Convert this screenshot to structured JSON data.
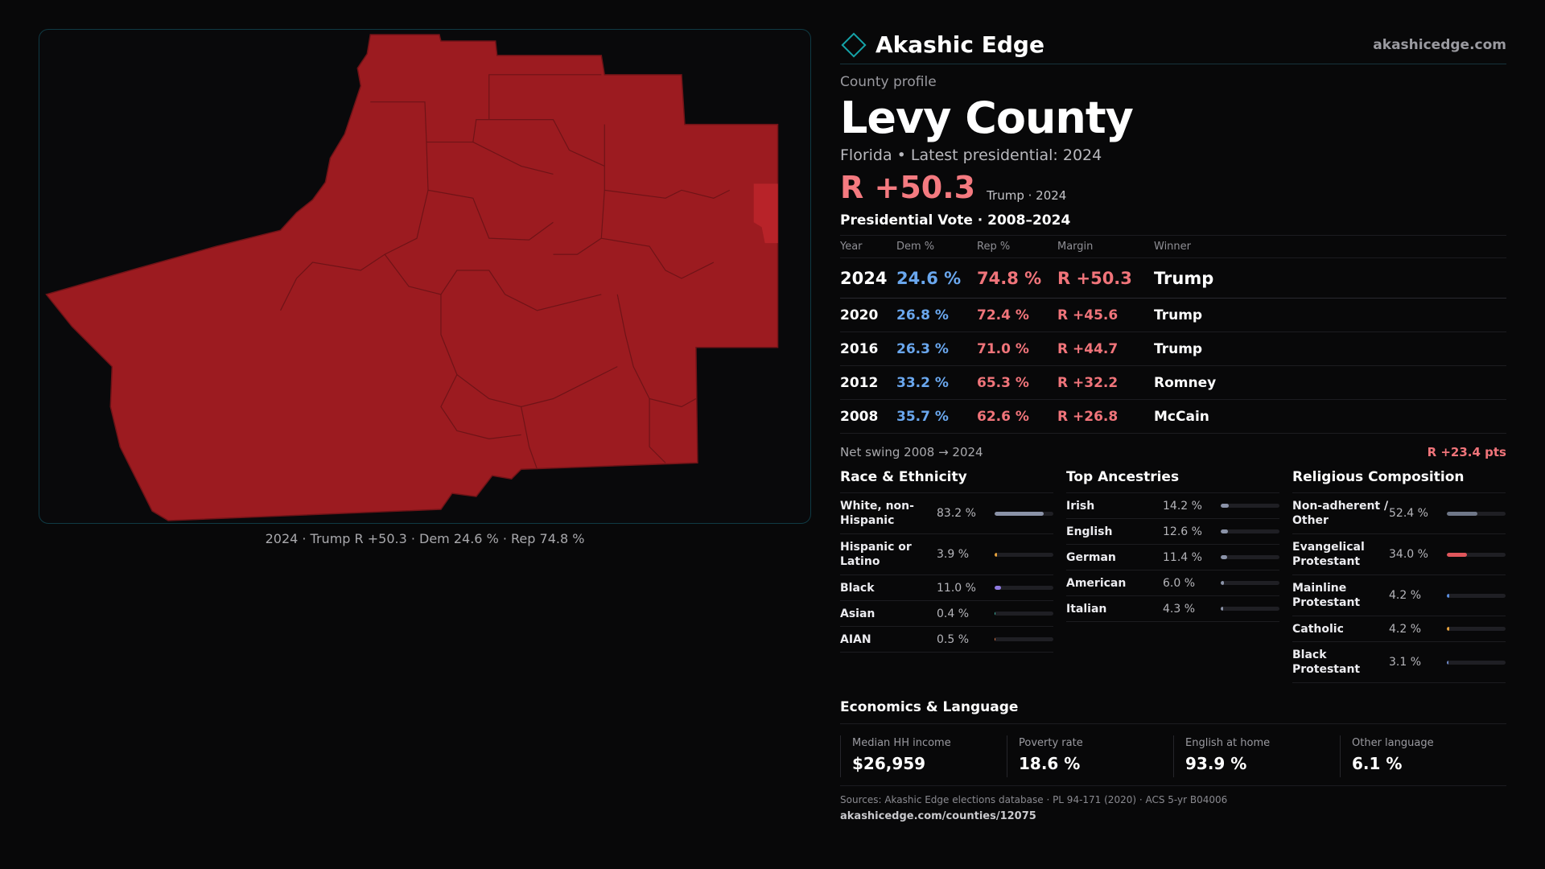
{
  "map": {
    "caption": "2024 · Trump R +50.3 · Dem 24.6 % · Rep 74.8 %",
    "fill_color": "#9c1b20",
    "highlight_color": "#b82329",
    "border_color": "#6f1317"
  },
  "brand": {
    "name": "Akashic Edge",
    "url": "akashicedge.com",
    "accent": "#15a3a8"
  },
  "profile": {
    "eyebrow": "County profile",
    "county": "Levy County",
    "subtitle": "Florida • Latest presidential: 2024",
    "margin": "R +50.3",
    "margin_note": "Trump · 2024"
  },
  "presidential": {
    "title": "Presidential Vote · 2008–2024",
    "headers": {
      "year": "Year",
      "dem": "Dem %",
      "rep": "Rep %",
      "margin": "Margin",
      "winner": "Winner"
    },
    "rows": [
      {
        "year": "2024",
        "dem": "24.6 %",
        "rep": "74.8 %",
        "margin": "R +50.3",
        "winner": "Trump"
      },
      {
        "year": "2020",
        "dem": "26.8 %",
        "rep": "72.4 %",
        "margin": "R +45.6",
        "winner": "Trump"
      },
      {
        "year": "2016",
        "dem": "26.3 %",
        "rep": "71.0 %",
        "margin": "R +44.7",
        "winner": "Trump"
      },
      {
        "year": "2012",
        "dem": "33.2 %",
        "rep": "65.3 %",
        "margin": "R +32.2",
        "winner": "Romney"
      },
      {
        "year": "2008",
        "dem": "35.7 %",
        "rep": "62.6 %",
        "margin": "R +26.8",
        "winner": "McCain"
      }
    ],
    "swing_label": "Net swing 2008 → 2024",
    "swing_value": "R +23.4 pts"
  },
  "race": {
    "title": "Race & Ethnicity",
    "items": [
      {
        "label": "White, non-Hispanic",
        "value": "83.2 %",
        "pct": 83.2,
        "color": "#8b93a8"
      },
      {
        "label": "Hispanic or Latino",
        "value": "3.9 %",
        "pct": 3.9,
        "color": "#e8a33c"
      },
      {
        "label": "Black",
        "value": "11.0 %",
        "pct": 11.0,
        "color": "#8f7ae0"
      },
      {
        "label": "Asian",
        "value": "0.4 %",
        "pct": 0.4,
        "color": "#3fb5a3"
      },
      {
        "label": "AIAN",
        "value": "0.5 %",
        "pct": 0.5,
        "color": "#e07a4a"
      }
    ]
  },
  "ancestry": {
    "title": "Top Ancestries",
    "items": [
      {
        "label": "Irish",
        "value": "14.2 %",
        "pct": 14.2,
        "color": "#8b93a8"
      },
      {
        "label": "English",
        "value": "12.6 %",
        "pct": 12.6,
        "color": "#8b93a8"
      },
      {
        "label": "German",
        "value": "11.4 %",
        "pct": 11.4,
        "color": "#8b93a8"
      },
      {
        "label": "American",
        "value": "6.0 %",
        "pct": 6.0,
        "color": "#8b93a8"
      },
      {
        "label": "Italian",
        "value": "4.3 %",
        "pct": 4.3,
        "color": "#8b93a8"
      }
    ]
  },
  "religion": {
    "title": "Religious Composition",
    "items": [
      {
        "label": "Non-adherent / Other",
        "value": "52.4 %",
        "pct": 52.4,
        "color": "#6f7788"
      },
      {
        "label": "Evangelical Protestant",
        "value": "34.0 %",
        "pct": 34.0,
        "color": "#e0565c"
      },
      {
        "label": "Mainline Protestant",
        "value": "4.2 %",
        "pct": 4.2,
        "color": "#5a8ee0"
      },
      {
        "label": "Catholic",
        "value": "4.2 %",
        "pct": 4.2,
        "color": "#e8a33c"
      },
      {
        "label": "Black Protestant",
        "value": "3.1 %",
        "pct": 3.1,
        "color": "#6f89c8"
      }
    ]
  },
  "economics": {
    "title": "Economics & Language",
    "items": [
      {
        "label": "Median HH income",
        "value": "$26,959"
      },
      {
        "label": "Poverty rate",
        "value": "18.6 %"
      },
      {
        "label": "English at home",
        "value": "93.9 %"
      },
      {
        "label": "Other language",
        "value": "6.1 %"
      }
    ]
  },
  "sources": {
    "text": "Sources: Akashic Edge elections database · PL 94-171 (2020) · ACS 5-yr B04006",
    "url": "akashicedge.com/counties/12075"
  }
}
